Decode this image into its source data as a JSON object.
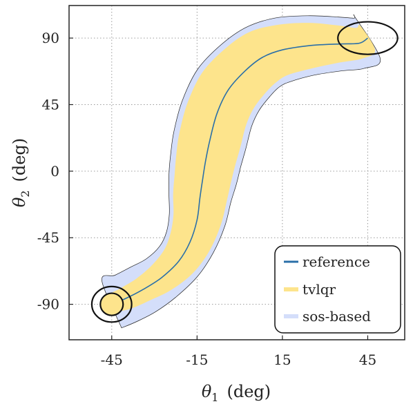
{
  "chart_data": {
    "type": "line",
    "xlabel_symbol": "θ",
    "xlabel_sub": "1",
    "xlabel_unit": "(deg)",
    "ylabel_symbol": "θ",
    "ylabel_sub": "2",
    "ylabel_unit": "(deg)",
    "xlim": [
      -60,
      58
    ],
    "ylim": [
      -114,
      112
    ],
    "xticks": [
      -45,
      -15,
      15,
      45
    ],
    "yticks": [
      -90,
      -45,
      0,
      45,
      90
    ],
    "grid": true,
    "legend_position": "bottom-right",
    "series": [
      {
        "name": "reference",
        "color": "#2a6fa8",
        "role": "line",
        "x": [
          -45,
          -40,
          -34,
          -27.5,
          -21.5,
          -17.5,
          -15,
          -14,
          -13,
          -12,
          -10.5,
          -8,
          -4,
          2,
          8,
          15,
          25,
          35,
          42,
          45
        ],
        "y": [
          -90,
          -86,
          -80,
          -72,
          -61,
          -48,
          -33,
          -18,
          -5,
          7,
          21,
          39,
          55,
          68,
          77,
          82,
          85,
          86,
          86.5,
          90
        ]
      },
      {
        "name": "tvlqr",
        "color": "#fde48c",
        "role": "funnel",
        "halfwidth": [
          3,
          4,
          4.5,
          5.5,
          6.5,
          7.5,
          8.5,
          9.5,
          10,
          10.5,
          11,
          11,
          11,
          10.5,
          10,
          9,
          8,
          6.5,
          5.5,
          5
        ]
      },
      {
        "name": "sos-based",
        "color": "#d4defa",
        "role": "funnel",
        "halfwidth": [
          9,
          9,
          9,
          8.5,
          8.5,
          9,
          10,
          11,
          12,
          12.5,
          13,
          13,
          13,
          12.5,
          12,
          11.5,
          10.5,
          9.5,
          9,
          8.5
        ]
      }
    ],
    "ellipses": [
      {
        "cx": -45,
        "cy": -90,
        "rx": 4,
        "ry": 7.5,
        "fill": "#fde48c"
      },
      {
        "cx": -45,
        "cy": -90,
        "rx": 7,
        "ry": 12,
        "fill": "none"
      },
      {
        "cx": 45,
        "cy": 90,
        "rx": 10.5,
        "ry": 11,
        "fill": "none"
      }
    ],
    "frame_color": "#222222",
    "grid_color": "#9a9a9a"
  }
}
